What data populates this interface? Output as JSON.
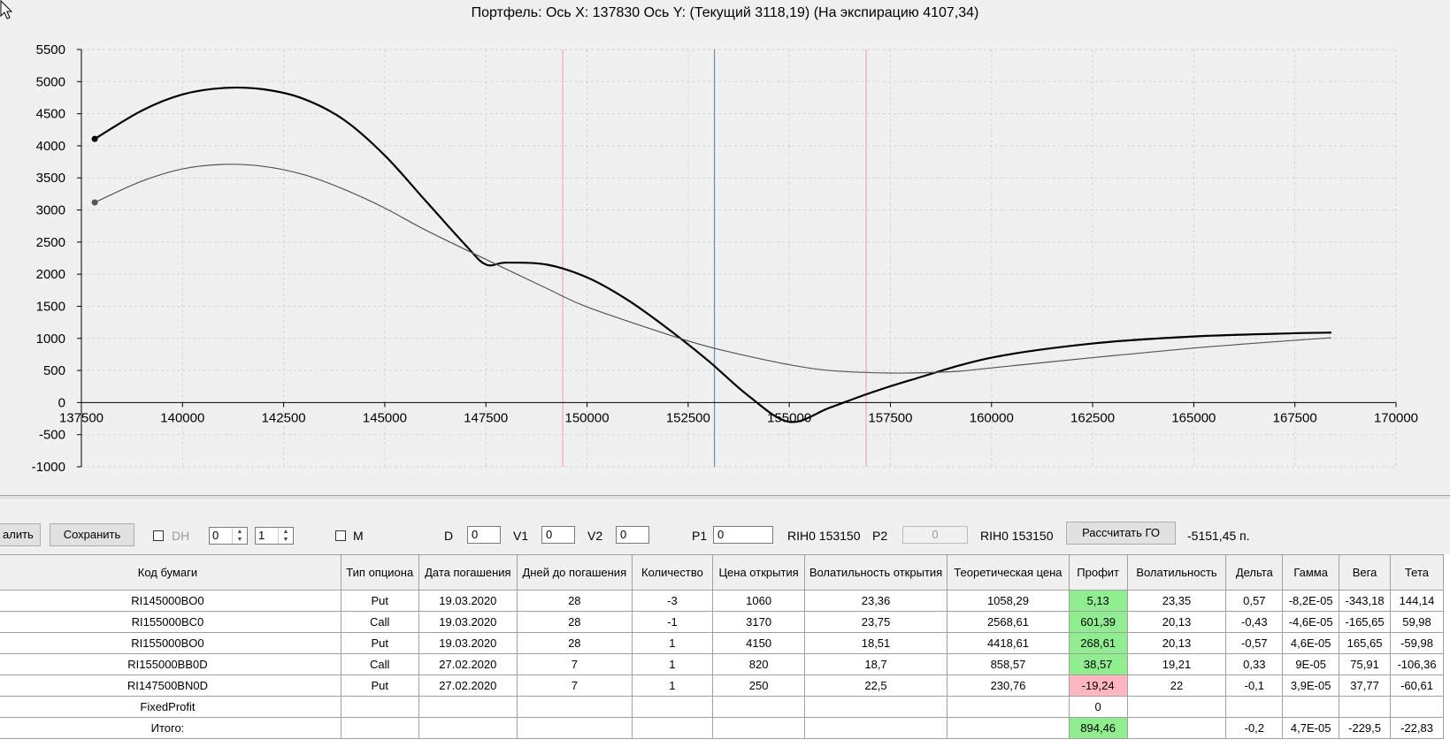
{
  "chart": {
    "title": "Портфель: Ось X: 137830 Ось Y:  (Текущий 3118,19)  (На экспирацию 4107,34)",
    "x_ticks": [
      "137500",
      "140000",
      "142500",
      "145000",
      "147500",
      "150000",
      "152500",
      "155000",
      "157500",
      "160000",
      "162500",
      "165000",
      "167500",
      "170000"
    ],
    "y_ticks": [
      "5500",
      "5000",
      "4500",
      "4000",
      "3500",
      "3000",
      "2500",
      "2000",
      "1500",
      "1000",
      "500",
      "0",
      "-500",
      "-1000"
    ]
  },
  "chart_data": {
    "type": "line",
    "title": "Портфель: Ось X: 137830 Ось Y:  (Текущий 3118,19)  (На экспирацию 4107,34)",
    "xlim": [
      137500,
      170000
    ],
    "ylim": [
      -1000,
      5500
    ],
    "grid": true,
    "vertical_lines": [
      {
        "x": 149400,
        "color": "#f4a6b8"
      },
      {
        "x": 153150,
        "color": "#6f8fa8"
      },
      {
        "x": 156900,
        "color": "#f4a6b8"
      }
    ],
    "series": [
      {
        "color": "#000000",
        "x": [
          137830,
          139000,
          140000,
          141000,
          142000,
          143000,
          144000,
          145000,
          146000,
          147000,
          147500,
          148000,
          149000,
          150000,
          151000,
          152000,
          153000,
          154000,
          155000,
          156000,
          157000,
          158000,
          160000,
          162500,
          165000,
          167500,
          168400
        ],
        "y": [
          4107,
          4550,
          4800,
          4900,
          4880,
          4730,
          4400,
          3850,
          3150,
          2450,
          2150,
          2180,
          2150,
          1950,
          1600,
          1150,
          650,
          100,
          -300,
          -80,
          150,
          350,
          700,
          920,
          1030,
          1080,
          1090
        ]
      },
      {
        "color": "#555555",
        "x": [
          137830,
          139000,
          140000,
          141000,
          142000,
          143000,
          144000,
          145000,
          146000,
          147500,
          149000,
          150000,
          152000,
          153000,
          154000,
          155000,
          156000,
          157500,
          159000,
          160000,
          162500,
          165000,
          167500,
          168400
        ],
        "y": [
          3118,
          3450,
          3640,
          3710,
          3680,
          3550,
          3320,
          3030,
          2690,
          2230,
          1780,
          1490,
          1060,
          870,
          720,
          590,
          500,
          460,
          480,
          540,
          700,
          850,
          970,
          1010
        ]
      }
    ]
  },
  "toolbar": {
    "delete_label": "алить",
    "save_label": "Сохранить",
    "dh_label": "DH",
    "spin1_value": "0",
    "spin2_value": "1",
    "m_label": "M",
    "d_label": "D",
    "d_value": "0",
    "v1_label": "V1",
    "v1_value": "0",
    "v2_label": "V2",
    "v2_value": "0",
    "p1_label": "P1",
    "p1_value": "0",
    "rih1_label": "RIH0 153150",
    "p2_label": "P2",
    "p2_value": "0",
    "rih2_label": "RIH0 153150",
    "calc_label": "Рассчитать ГО",
    "go_value": "-5151,45 п."
  },
  "table": {
    "headers": [
      "Код бумаги",
      "Тип опциона",
      "Дата погашения",
      "Дней до погашения",
      "Количество",
      "Цена открытия",
      "Волатильность открытия",
      "Теоретическая цена",
      "Профит",
      "Волатильность",
      "Дельта",
      "Гамма",
      "Вега",
      "Тета"
    ],
    "rows": [
      [
        "RI145000BO0",
        "Put",
        "19.03.2020",
        "28",
        "-3",
        "1060",
        "23,36",
        "1058,29",
        "5,13",
        "23,35",
        "0,57",
        "-8,2E-05",
        "-343,18",
        "144,14"
      ],
      [
        "RI155000BC0",
        "Call",
        "19.03.2020",
        "28",
        "-1",
        "3170",
        "23,75",
        "2568,61",
        "601,39",
        "20,13",
        "-0,43",
        "-4,6E-05",
        "-165,65",
        "59,98"
      ],
      [
        "RI155000BO0",
        "Put",
        "19.03.2020",
        "28",
        "1",
        "4150",
        "18,51",
        "4418,61",
        "268,61",
        "20,13",
        "-0,57",
        "4,6E-05",
        "165,65",
        "-59,98"
      ],
      [
        "RI155000BB0D",
        "Call",
        "27.02.2020",
        "7",
        "1",
        "820",
        "18,7",
        "858,57",
        "38,57",
        "19,21",
        "0,33",
        "9E-05",
        "75,91",
        "-106,36"
      ],
      [
        "RI147500BN0D",
        "Put",
        "27.02.2020",
        "7",
        "1",
        "250",
        "22,5",
        "230,76",
        "-19,24",
        "22",
        "-0,1",
        "3,9E-05",
        "37,77",
        "-60,61"
      ],
      [
        "FixedProfit",
        "",
        "",
        "",
        "",
        "",
        "",
        "",
        "0",
        "",
        "",
        "",
        "",
        ""
      ],
      [
        "Итого:",
        "",
        "",
        "",
        "",
        "",
        "",
        "",
        "894,46",
        "",
        "-0,2",
        "4,7E-05",
        "-229,5",
        "-22,83"
      ]
    ],
    "profit_status": [
      "pos",
      "pos",
      "pos",
      "pos",
      "neg",
      "none",
      "pos"
    ]
  }
}
